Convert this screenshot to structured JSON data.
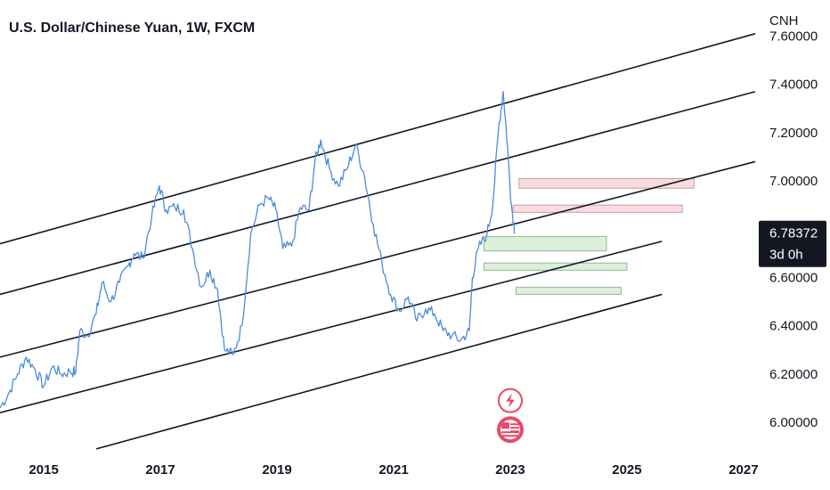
{
  "chart_data": {
    "type": "line",
    "title": "U.S. Dollar/Chinese Yuan, 1W, FXCM",
    "currency": "CNH",
    "y_ticks": [
      "7.60000",
      "7.40000",
      "7.20000",
      "7.00000",
      "6.60000",
      "6.40000",
      "6.20000",
      "6.00000"
    ],
    "y_tick_values": [
      7.6,
      7.4,
      7.2,
      7.0,
      6.6,
      6.4,
      6.2,
      6.0
    ],
    "x_ticks": [
      "2015",
      "2017",
      "2019",
      "2021",
      "2023",
      "2025",
      "2027"
    ],
    "x_tick_values": [
      2015,
      2017,
      2019,
      2021,
      2023,
      2025,
      2027
    ],
    "ylim": [
      5.86,
      7.72
    ],
    "xlim": [
      2014.25,
      2027.2
    ],
    "current_price": "6.78372",
    "current_price_value": 6.78372,
    "countdown": "3d 0h",
    "series": [
      {
        "values": [
          [
            2014.25,
            6.06
          ],
          [
            2014.4,
            6.12
          ],
          [
            2014.55,
            6.2
          ],
          [
            2014.7,
            6.27
          ],
          [
            2014.85,
            6.22
          ],
          [
            2015.0,
            6.15
          ],
          [
            2015.15,
            6.23
          ],
          [
            2015.3,
            6.2
          ],
          [
            2015.45,
            6.21
          ],
          [
            2015.55,
            6.21
          ],
          [
            2015.62,
            6.38
          ],
          [
            2015.75,
            6.36
          ],
          [
            2015.9,
            6.45
          ],
          [
            2016.0,
            6.58
          ],
          [
            2016.15,
            6.5
          ],
          [
            2016.3,
            6.58
          ],
          [
            2016.45,
            6.65
          ],
          [
            2016.55,
            6.7
          ],
          [
            2016.7,
            6.68
          ],
          [
            2016.85,
            6.85
          ],
          [
            2016.98,
            6.98
          ],
          [
            2017.1,
            6.88
          ],
          [
            2017.25,
            6.89
          ],
          [
            2017.4,
            6.88
          ],
          [
            2017.55,
            6.72
          ],
          [
            2017.7,
            6.56
          ],
          [
            2017.85,
            6.63
          ],
          [
            2017.98,
            6.55
          ],
          [
            2018.1,
            6.3
          ],
          [
            2018.25,
            6.28
          ],
          [
            2018.4,
            6.4
          ],
          [
            2018.55,
            6.78
          ],
          [
            2018.7,
            6.9
          ],
          [
            2018.85,
            6.93
          ],
          [
            2018.98,
            6.88
          ],
          [
            2019.1,
            6.72
          ],
          [
            2019.25,
            6.73
          ],
          [
            2019.4,
            6.89
          ],
          [
            2019.55,
            6.88
          ],
          [
            2019.65,
            7.08
          ],
          [
            2019.75,
            7.17
          ],
          [
            2019.9,
            7.05
          ],
          [
            2020.05,
            6.98
          ],
          [
            2020.2,
            7.05
          ],
          [
            2020.35,
            7.15
          ],
          [
            2020.5,
            7.02
          ],
          [
            2020.65,
            6.82
          ],
          [
            2020.8,
            6.66
          ],
          [
            2020.95,
            6.53
          ],
          [
            2021.1,
            6.46
          ],
          [
            2021.25,
            6.52
          ],
          [
            2021.4,
            6.42
          ],
          [
            2021.55,
            6.47
          ],
          [
            2021.7,
            6.45
          ],
          [
            2021.85,
            6.38
          ],
          [
            2022.0,
            6.36
          ],
          [
            2022.15,
            6.34
          ],
          [
            2022.3,
            6.38
          ],
          [
            2022.35,
            6.6
          ],
          [
            2022.45,
            6.72
          ],
          [
            2022.6,
            6.78
          ],
          [
            2022.7,
            6.9
          ],
          [
            2022.8,
            7.22
          ],
          [
            2022.88,
            7.37
          ],
          [
            2022.95,
            7.15
          ],
          [
            2023.02,
            6.9
          ],
          [
            2023.08,
            6.78372
          ]
        ]
      }
    ],
    "channel_lines": [
      {
        "from": [
          2014.25,
          6.74
        ],
        "to": [
          2027.2,
          7.61
        ]
      },
      {
        "from": [
          2014.25,
          6.53
        ],
        "to": [
          2027.2,
          7.37
        ]
      },
      {
        "from": [
          2014.25,
          6.27
        ],
        "to": [
          2027.2,
          7.08
        ]
      },
      {
        "from": [
          2014.25,
          6.04
        ],
        "to": [
          2025.6,
          6.75
        ]
      },
      {
        "from": [
          2015.9,
          5.89
        ],
        "to": [
          2025.6,
          6.53
        ]
      }
    ],
    "zones": [
      {
        "kind": "supply",
        "x0": 2023.15,
        "x1": 2026.15,
        "y0": 6.97,
        "y1": 7.01
      },
      {
        "kind": "supply",
        "x0": 2023.05,
        "x1": 2025.95,
        "y0": 6.87,
        "y1": 6.9
      },
      {
        "kind": "demand",
        "x0": 2022.55,
        "x1": 2024.65,
        "y0": 6.71,
        "y1": 6.77
      },
      {
        "kind": "demand",
        "x0": 2022.55,
        "x1": 2025.0,
        "y0": 6.63,
        "y1": 6.66
      },
      {
        "kind": "demand",
        "x0": 2023.1,
        "x1": 2024.9,
        "y0": 6.53,
        "y1": 6.56
      }
    ],
    "event_icons": [
      {
        "name": "lightning-icon",
        "x": 2023.0,
        "y": 6.09
      },
      {
        "name": "us-flag-icon",
        "x": 2023.0,
        "y": 5.97
      }
    ],
    "colors": {
      "series": "#4c8dda",
      "channel": "#131722",
      "supply_fill": "#f9dcdf",
      "supply_stroke": "#c79ba1",
      "demand_fill": "#dcefd9",
      "demand_stroke": "#94b89a",
      "price_tag": "#131722",
      "event_icon": "#e84a68"
    }
  }
}
